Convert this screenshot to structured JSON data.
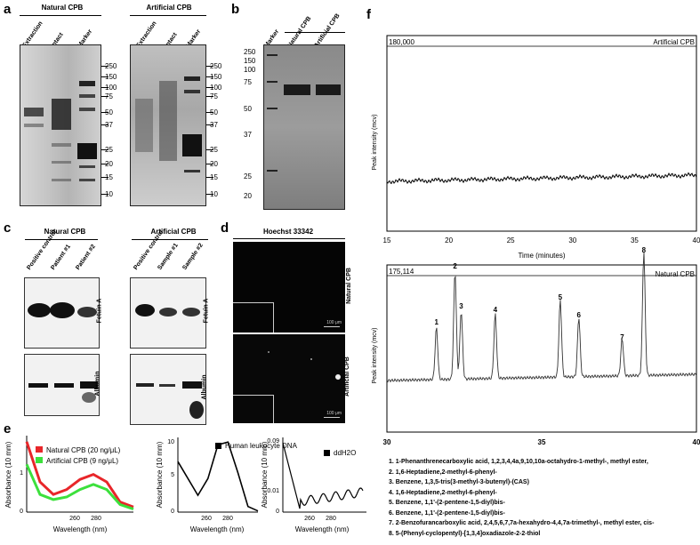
{
  "panels": {
    "a": {
      "label": "a",
      "gel_natural": {
        "title": "Natural CPB",
        "lanes": [
          "Extraction",
          "Intact",
          "Marker"
        ]
      },
      "gel_artificial": {
        "title": "Artificial CPB",
        "lanes": [
          "Extraction",
          "Intact",
          "Marker"
        ]
      },
      "markers": [
        "250",
        "150",
        "100",
        "75",
        "50",
        "37",
        "25",
        "20",
        "15",
        "10"
      ]
    },
    "b": {
      "label": "b",
      "lanes": [
        "Marker",
        "Natural CPB",
        "Artificial CPB"
      ],
      "markers": [
        "250",
        "150",
        "100",
        "75",
        "50",
        "37",
        "25",
        "20"
      ]
    },
    "c": {
      "label": "c",
      "natural": {
        "title": "Natural CPB",
        "lanes": [
          "Positive control",
          "Patient #1",
          "Patient #2"
        ]
      },
      "artificial": {
        "title": "Artificial CPB",
        "lanes": [
          "Positive control",
          "Sample #1",
          "Sample #2"
        ]
      },
      "blot1": "Fetuin A",
      "blot2": "Albumin"
    },
    "d": {
      "label": "d",
      "title": "Hoechst 33342",
      "top": "Natural CPB",
      "bottom": "Artificial CPB",
      "scale": "100 μm"
    },
    "e": {
      "label": "e",
      "ylabel": "Absorbance (10 mm)",
      "xlabel": "Wavelength (nm)",
      "legend1": "Natural CPB (20 ng/μL)",
      "legend2": "Artificial CPB  (9 ng/μL)",
      "legend3": "Human leukocyte DNA",
      "legend4": "ddH2O",
      "colors": {
        "natural": "#e8262a",
        "artificial": "#3ce03c",
        "black": "#000000"
      }
    },
    "f": {
      "label": "f",
      "top_title": "Artificial CPB",
      "top_max": "180,000",
      "bottom_title": "Natural CPB",
      "bottom_max": "175,114",
      "ylabel": "Peak intensity (mcv)",
      "xlabel": "Time (minutes)",
      "compounds": [
        "1. 1-Phenanthrenecarboxylic acid, 1,2,3,4,4a,9,10,10a-octahydro-1-methyl-, methyl ester,",
        "2. 1,6-Heptadiene,2-methyl-6-phenyl-",
        "3. Benzene, 1,3,5-tris(3-methyl-3-butenyl)-(CAS)",
        "4. 1,6-Heptadiene,2-methyl-6-phenyl-",
        "5. Benzene, 1,1'-(2-pentene-1,5-diyl)bis-",
        "6. Benzene, 1,1'-(2-pentene-1,5-diyl)bis-",
        "7. 2-Benzofurancarboxylic acid, 2,4,5,6,7,7a-hexahydro-4,4,7a-trimethyl-, methyl ester, cis-",
        "8. 5-(Phenyl-cyclopentyl)-[1,3,4]oxadiazole-2-2-thiol"
      ]
    }
  },
  "chart_data": [
    {
      "type": "line",
      "title": "Artificial CPB",
      "xlabel": "Time (minutes)",
      "ylabel": "Peak intensity (mcv)",
      "xlim": [
        15,
        40
      ],
      "ymax_label": "180,000",
      "x_ticks": [
        15,
        20,
        25,
        30,
        35,
        40
      ],
      "series": [
        {
          "name": "Artificial CPB",
          "x": [
            15,
            20,
            25,
            30,
            35,
            40
          ],
          "y": [
            0.08,
            0.09,
            0.1,
            0.11,
            0.12,
            0.12
          ]
        }
      ]
    },
    {
      "type": "line",
      "title": "Natural CPB",
      "xlabel": "Time (minutes)",
      "ylabel": "Peak intensity (mcv)",
      "xlim": [
        30,
        40
      ],
      "ymax_label": "175,114",
      "x_ticks": [
        30,
        35,
        40
      ],
      "peaks": [
        {
          "label": "1",
          "x": 31.6,
          "y": 0.42
        },
        {
          "label": "2",
          "x": 32.2,
          "y": 0.87
        },
        {
          "label": "3",
          "x": 32.4,
          "y": 0.55
        },
        {
          "label": "4",
          "x": 33.5,
          "y": 0.52
        },
        {
          "label": "5",
          "x": 35.6,
          "y": 0.62
        },
        {
          "label": "6",
          "x": 36.2,
          "y": 0.48
        },
        {
          "label": "7",
          "x": 37.6,
          "y": 0.3
        },
        {
          "label": "8",
          "x": 38.3,
          "y": 1.0
        }
      ]
    },
    {
      "type": "line",
      "title": "",
      "xlabel": "Wavelength (nm)",
      "ylabel": "Absorbance (10 mm)",
      "y_ticks": [
        0,
        0.5,
        1
      ],
      "x_ticks": [
        260,
        280
      ],
      "series": [
        {
          "name": "Natural CPB (20 ng/μL)",
          "x": [
            220,
            230,
            240,
            250,
            260,
            270,
            280,
            290,
            300
          ],
          "y": [
            1.4,
            0.6,
            0.35,
            0.45,
            0.65,
            0.75,
            0.6,
            0.2,
            0.1
          ]
        },
        {
          "name": "Artificial CPB  (9 ng/μL)",
          "x": [
            220,
            230,
            240,
            250,
            260,
            270,
            280,
            290,
            300
          ],
          "y": [
            0.95,
            0.35,
            0.25,
            0.3,
            0.45,
            0.55,
            0.45,
            0.15,
            0.06
          ]
        }
      ]
    },
    {
      "type": "line",
      "xlabel": "Wavelength (nm)",
      "ylabel": "Absorbance (10 mm)",
      "y_ticks": [
        0,
        5,
        10
      ],
      "x_ticks": [
        260,
        280
      ],
      "series": [
        {
          "name": "Human leukocyte DNA",
          "x": [
            220,
            240,
            250,
            260,
            270,
            280,
            290,
            300
          ],
          "y": [
            9,
            3,
            6,
            12,
            12.5,
            7,
            1,
            0.2
          ]
        }
      ]
    },
    {
      "type": "line",
      "xlabel": "Wavelength (nm)",
      "ylabel": "Absorbance (10 mm)",
      "y_ticks": [
        0,
        0.01,
        0.09
      ],
      "x_ticks": [
        260,
        280
      ],
      "series": [
        {
          "name": "ddH2O",
          "x": [
            220,
            240,
            260,
            280,
            300
          ],
          "y": [
            0.09,
            0.0,
            0.005,
            0.007,
            0.008
          ]
        }
      ]
    }
  ]
}
